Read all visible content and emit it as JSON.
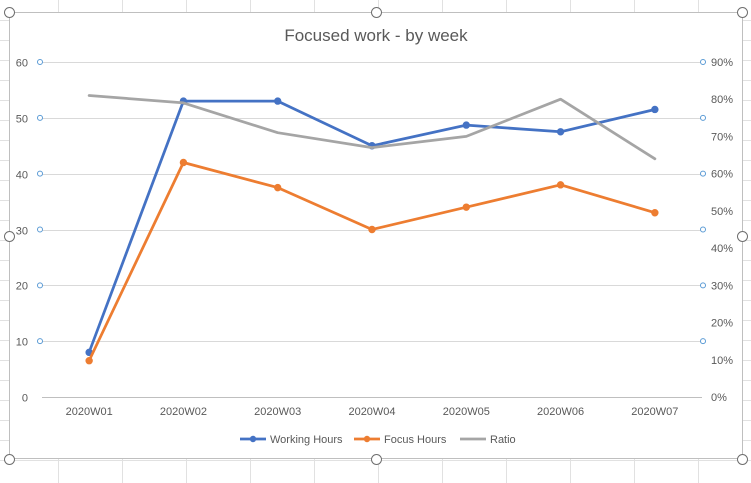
{
  "chart_data": {
    "type": "line",
    "title": "Focused work - by week",
    "categories": [
      "2020W01",
      "2020W02",
      "2020W03",
      "2020W04",
      "2020W05",
      "2020W06",
      "2020W07"
    ],
    "series": [
      {
        "name": "Working Hours",
        "axis": "left",
        "color": "#4472c4",
        "marker": true,
        "values": [
          8,
          53,
          53,
          45,
          48.7,
          47.5,
          51.5
        ]
      },
      {
        "name": "Focus Hours",
        "axis": "left",
        "color": "#ed7d31",
        "marker": true,
        "values": [
          6.5,
          42,
          37.5,
          30,
          34,
          38,
          33
        ]
      },
      {
        "name": "Ratio",
        "axis": "right",
        "color": "#a5a5a5",
        "marker": false,
        "values": [
          0.81,
          0.79,
          0.71,
          0.67,
          0.7,
          0.8,
          0.64
        ]
      }
    ],
    "y_left": {
      "min": 0,
      "max": 60,
      "ticks": [
        0,
        10,
        20,
        30,
        40,
        50,
        60
      ]
    },
    "y_right": {
      "min": 0,
      "max": 0.9,
      "ticks": [
        0,
        0.1,
        0.2,
        0.3,
        0.4,
        0.5,
        0.6,
        0.7,
        0.8,
        0.9
      ],
      "tick_labels": [
        "0%",
        "10%",
        "20%",
        "30%",
        "40%",
        "50%",
        "60%",
        "70%",
        "80%",
        "90%"
      ]
    },
    "grid": true,
    "legend_position": "bottom"
  }
}
